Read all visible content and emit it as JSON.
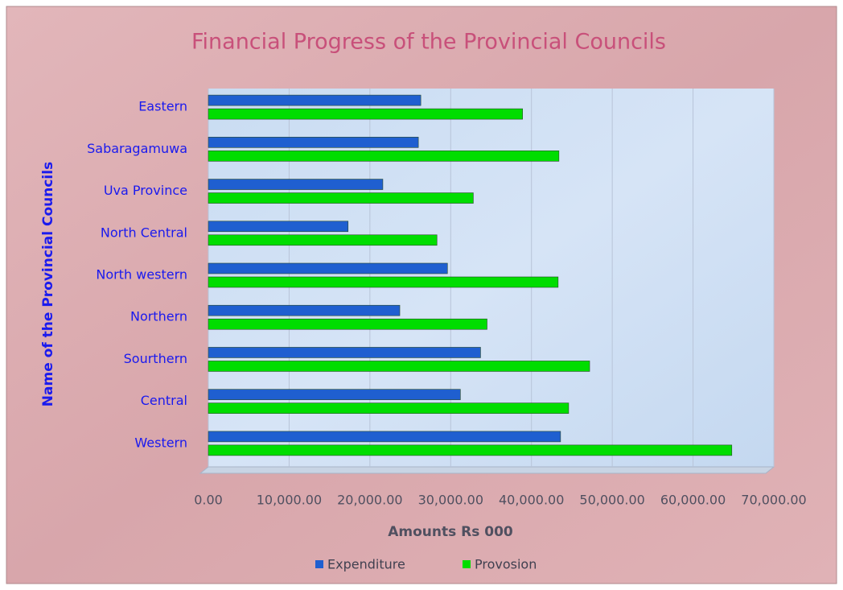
{
  "chart_data": {
    "type": "bar",
    "orientation": "horizontal",
    "title": "Financial Progress of the Provincial Councils",
    "x_label": "Amounts Rs 000",
    "y_label": "Name of the Provincial Councils",
    "categories": [
      "Western",
      "Central",
      "Sourthern",
      "Northern",
      "North western",
      "North Central",
      "Uva Province",
      "Sabaragamuwa",
      "Eastern"
    ],
    "series": [
      {
        "name": "Expenditure",
        "color": "#1f5fd0",
        "values": [
          43600,
          31200,
          33700,
          23700,
          29600,
          17300,
          21600,
          26000,
          26300
        ]
      },
      {
        "name": "Provosion",
        "color": "#00dd00",
        "values": [
          64800,
          44600,
          47200,
          34500,
          43300,
          28300,
          32800,
          43400,
          38900
        ]
      }
    ],
    "xlim": [
      0,
      70000
    ],
    "xticks": [
      {
        "value": 0,
        "label": "0.00"
      },
      {
        "value": 10000,
        "label": "10,000.00"
      },
      {
        "value": 20000,
        "label": "20,000.00"
      },
      {
        "value": 30000,
        "label": "30,000.00"
      },
      {
        "value": 40000,
        "label": "40,000.00"
      },
      {
        "value": 50000,
        "label": "50,000.00"
      },
      {
        "value": 60000,
        "label": "60,000.00"
      },
      {
        "value": 70000,
        "label": "70,000.00"
      }
    ],
    "grid": true,
    "legend": "bottom"
  }
}
